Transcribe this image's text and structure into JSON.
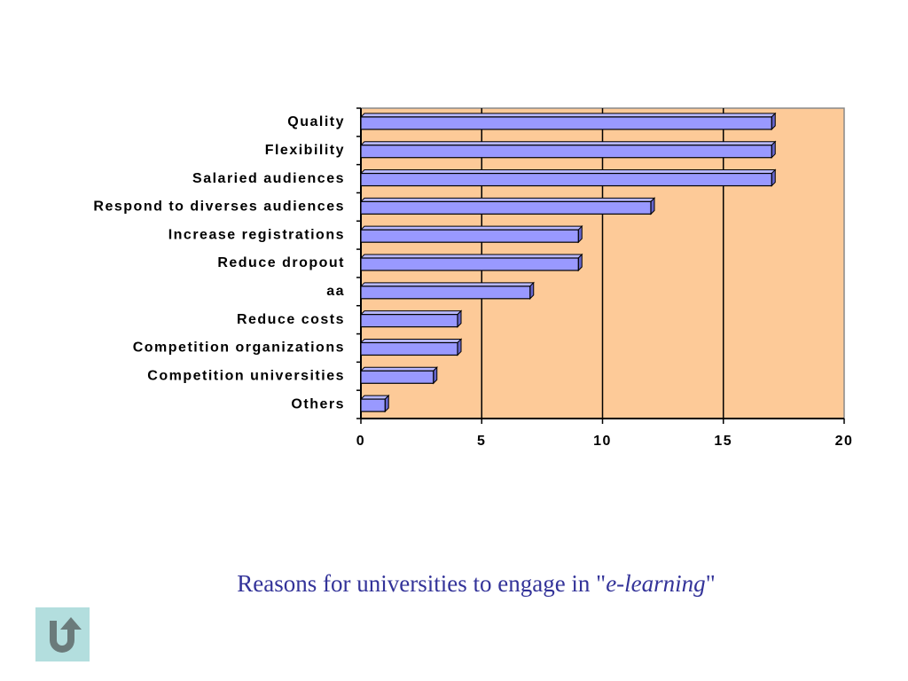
{
  "chart_data": {
    "type": "bar",
    "orientation": "horizontal",
    "categories": [
      "Quality",
      "Flexibility",
      "Salaried audiences",
      "Respond to diverses audiences",
      "Increase registrations",
      "Reduce dropout",
      "aa",
      "Reduce costs",
      "Competition organizations",
      "Competition universities",
      "Others"
    ],
    "values": [
      17,
      17,
      17,
      12,
      9,
      9,
      7,
      4,
      4,
      3,
      1
    ],
    "color": "#9999ff",
    "background": "#fdca98",
    "xlim": [
      0,
      20
    ],
    "xticks": [
      0,
      5,
      10,
      15,
      20
    ],
    "grid": true
  },
  "caption": {
    "lead": "Reasons for universities to engage in \"",
    "emphasis": "e-learning",
    "tail": "\""
  }
}
